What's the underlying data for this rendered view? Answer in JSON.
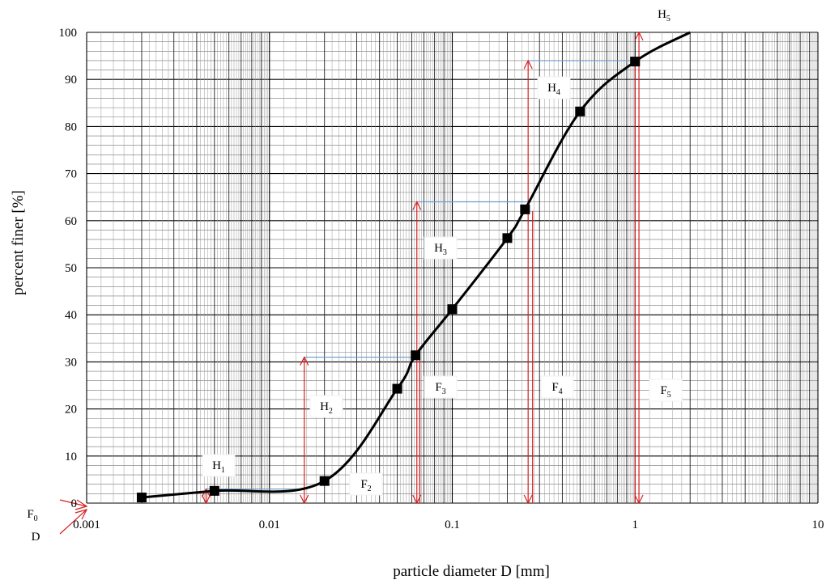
{
  "chart_data": {
    "type": "line",
    "xlabel": "particle diameter D [mm]",
    "ylabel": "percent finer [%]",
    "x_scale": "log",
    "xlim": [
      0.001,
      10
    ],
    "ylim": [
      0,
      100
    ],
    "grid": true,
    "x_ticks": [
      "0.001",
      "0.01",
      "0.1",
      "1",
      "10"
    ],
    "y_ticks": [
      "0",
      "10",
      "20",
      "30",
      "40",
      "50",
      "60",
      "70",
      "80",
      "90",
      "100"
    ],
    "series": [
      {
        "marker": "square",
        "color": "#000000",
        "points": [
          {
            "x": 0.002,
            "y": 1.2
          },
          {
            "x": 0.005,
            "y": 2.6
          },
          {
            "x": 0.02,
            "y": 4.7
          },
          {
            "x": 0.05,
            "y": 24.3
          },
          {
            "x": 0.063,
            "y": 31.4
          },
          {
            "x": 0.1,
            "y": 41.2
          },
          {
            "x": 0.2,
            "y": 56.3
          },
          {
            "x": 0.25,
            "y": 62.4
          },
          {
            "x": 0.5,
            "y": 83.2
          },
          {
            "x": 1.0,
            "y": 93.8
          }
        ]
      }
    ],
    "curve_end": {
      "x": 2.0,
      "y": 100
    },
    "annotation_color": "#d82020",
    "guide_color": "#6a9bd0",
    "labels": {
      "F0": {
        "main": "F",
        "sub": "0"
      },
      "D": {
        "main": "D",
        "sub": ""
      },
      "H1": {
        "main": "H",
        "sub": "1"
      },
      "H2": {
        "main": "H",
        "sub": "2"
      },
      "H3": {
        "main": "H",
        "sub": "3"
      },
      "H4": {
        "main": "H",
        "sub": "4"
      },
      "H5": {
        "main": "H",
        "sub": "5"
      },
      "F2": {
        "main": "F",
        "sub": "2"
      },
      "F3": {
        "main": "F",
        "sub": "3"
      },
      "F4": {
        "main": "F",
        "sub": "4"
      },
      "F5": {
        "main": "F",
        "sub": "5"
      }
    }
  }
}
